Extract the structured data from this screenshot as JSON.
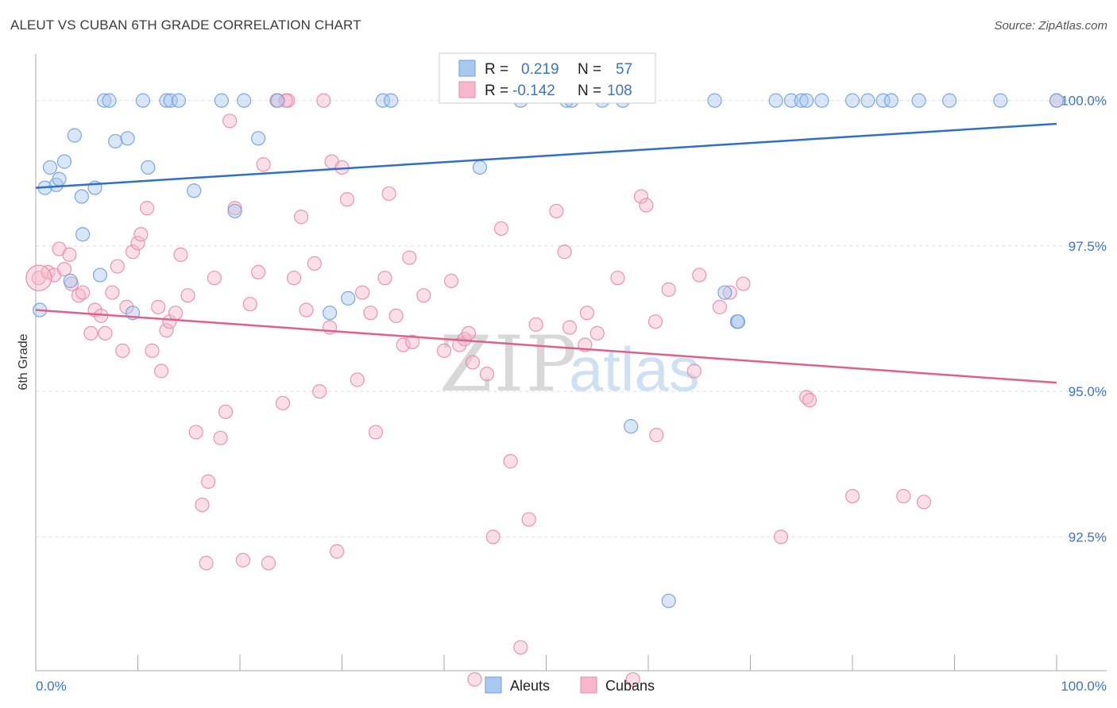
{
  "chart_data": {
    "type": "scatter",
    "title": "ALEUT VS CUBAN 6TH GRADE CORRELATION CHART",
    "source": "Source: ZipAtlas.com",
    "xlabel": "",
    "ylabel": "6th Grade",
    "xlim": [
      0,
      100
    ],
    "ylim": [
      90.2,
      100.8
    ],
    "x_tick_labels": {
      "min": "0.0%",
      "max": "100.0%"
    },
    "y_ticks": [
      {
        "value": 100.0,
        "label": "100.0%"
      },
      {
        "value": 97.5,
        "label": "97.5%"
      },
      {
        "value": 95.0,
        "label": "95.0%"
      },
      {
        "value": 92.5,
        "label": "92.5%"
      }
    ],
    "watermark": {
      "zip": "ZIP",
      "atlas": "atlas"
    },
    "legend": {
      "r_label": "R =",
      "n_label": "N =",
      "rows": [
        {
          "series": "Aleuts",
          "r": "0.219",
          "n": "57"
        },
        {
          "series": "Cubans",
          "r": "-0.142",
          "n": "108"
        }
      ]
    },
    "colors": {
      "aleuts_fill": "#a9c8f0",
      "aleuts_stroke": "#6f9fdc",
      "aleuts_line": "#2f6fcc",
      "cubans_fill": "#f7b8cb",
      "cubans_stroke": "#e889a6",
      "cubans_line": "#e0608a"
    },
    "series": [
      {
        "name": "Aleuts",
        "trend": {
          "x": [
            0,
            100
          ],
          "y": [
            98.5,
            99.6
          ]
        },
        "points": [
          [
            0.4,
            96.4
          ],
          [
            0.9,
            98.5
          ],
          [
            1.4,
            98.85
          ],
          [
            2.0,
            98.55
          ],
          [
            2.3,
            98.65
          ],
          [
            2.8,
            98.95
          ],
          [
            3.4,
            96.9
          ],
          [
            3.8,
            99.4
          ],
          [
            4.5,
            98.35
          ],
          [
            4.6,
            97.7
          ],
          [
            5.8,
            98.5
          ],
          [
            6.3,
            97.0
          ],
          [
            6.7,
            100.0
          ],
          [
            7.2,
            100.0
          ],
          [
            7.8,
            99.3
          ],
          [
            9.0,
            99.35
          ],
          [
            9.5,
            96.35
          ],
          [
            10.5,
            100.0
          ],
          [
            11.0,
            98.85
          ],
          [
            12.8,
            100.0
          ],
          [
            13.2,
            100.0
          ],
          [
            14.0,
            100.0
          ],
          [
            15.5,
            98.45
          ],
          [
            18.2,
            100.0
          ],
          [
            19.5,
            98.1
          ],
          [
            20.4,
            100.0
          ],
          [
            21.8,
            99.35
          ],
          [
            23.7,
            100.0
          ],
          [
            28.8,
            96.35
          ],
          [
            30.6,
            96.6
          ],
          [
            34.0,
            100.0
          ],
          [
            34.8,
            100.0
          ],
          [
            43.5,
            98.85
          ],
          [
            47.5,
            100.0
          ],
          [
            52.0,
            100.0
          ],
          [
            52.5,
            100.0
          ],
          [
            55.5,
            100.0
          ],
          [
            57.5,
            100.0
          ],
          [
            58.3,
            94.4
          ],
          [
            62.0,
            91.4
          ],
          [
            66.5,
            100.0
          ],
          [
            67.5,
            96.7
          ],
          [
            68.7,
            96.2
          ],
          [
            68.8,
            96.2
          ],
          [
            72.5,
            100.0
          ],
          [
            74.0,
            100.0
          ],
          [
            75.0,
            100.0
          ],
          [
            75.5,
            100.0
          ],
          [
            77.0,
            100.0
          ],
          [
            80.0,
            100.0
          ],
          [
            81.5,
            100.0
          ],
          [
            83.0,
            100.0
          ],
          [
            83.8,
            100.0
          ],
          [
            86.5,
            100.0
          ],
          [
            89.5,
            100.0
          ],
          [
            94.5,
            100.0
          ],
          [
            100.0,
            100.0
          ]
        ]
      },
      {
        "name": "Cubans",
        "trend": {
          "x": [
            0,
            100
          ],
          "y": [
            96.4,
            95.15
          ]
        },
        "points": [
          [
            0.3,
            96.95
          ],
          [
            1.2,
            97.05
          ],
          [
            1.8,
            97.0
          ],
          [
            2.3,
            97.45
          ],
          [
            2.8,
            97.1
          ],
          [
            3.3,
            97.35
          ],
          [
            3.5,
            96.85
          ],
          [
            4.2,
            96.65
          ],
          [
            4.6,
            96.7
          ],
          [
            5.4,
            96.0
          ],
          [
            5.8,
            96.4
          ],
          [
            6.4,
            96.3
          ],
          [
            6.8,
            96.0
          ],
          [
            7.5,
            96.7
          ],
          [
            8.0,
            97.15
          ],
          [
            8.5,
            95.7
          ],
          [
            8.9,
            96.45
          ],
          [
            9.5,
            97.4
          ],
          [
            10.0,
            97.55
          ],
          [
            10.3,
            97.7
          ],
          [
            10.9,
            98.15
          ],
          [
            11.4,
            95.7
          ],
          [
            12.0,
            96.45
          ],
          [
            12.3,
            95.35
          ],
          [
            12.8,
            96.05
          ],
          [
            13.1,
            96.2
          ],
          [
            13.7,
            96.35
          ],
          [
            14.2,
            97.35
          ],
          [
            14.9,
            96.65
          ],
          [
            15.7,
            94.3
          ],
          [
            16.3,
            93.05
          ],
          [
            16.7,
            92.05
          ],
          [
            16.9,
            93.45
          ],
          [
            17.5,
            96.95
          ],
          [
            18.1,
            94.2
          ],
          [
            18.6,
            94.65
          ],
          [
            19.0,
            99.65
          ],
          [
            19.5,
            98.15
          ],
          [
            20.3,
            92.1
          ],
          [
            21.0,
            96.5
          ],
          [
            21.8,
            97.05
          ],
          [
            22.3,
            98.9
          ],
          [
            22.8,
            92.05
          ],
          [
            23.6,
            100.0
          ],
          [
            24.2,
            94.8
          ],
          [
            24.7,
            100.0
          ],
          [
            25.3,
            96.95
          ],
          [
            26.0,
            98.0
          ],
          [
            26.5,
            96.4
          ],
          [
            27.3,
            97.2
          ],
          [
            27.8,
            95.0
          ],
          [
            28.8,
            96.1
          ],
          [
            28.2,
            100.0
          ],
          [
            29.0,
            98.95
          ],
          [
            29.5,
            92.25
          ],
          [
            30.0,
            98.85
          ],
          [
            30.5,
            98.3
          ],
          [
            31.5,
            95.2
          ],
          [
            32.0,
            96.7
          ],
          [
            32.8,
            96.35
          ],
          [
            33.3,
            94.3
          ],
          [
            34.2,
            96.95
          ],
          [
            34.6,
            98.4
          ],
          [
            35.3,
            96.3
          ],
          [
            36.0,
            95.8
          ],
          [
            36.6,
            97.3
          ],
          [
            36.9,
            95.85
          ],
          [
            38.0,
            96.65
          ],
          [
            40.0,
            95.7
          ],
          [
            40.7,
            96.9
          ],
          [
            41.5,
            95.8
          ],
          [
            42.0,
            95.9
          ],
          [
            42.4,
            96.0
          ],
          [
            42.8,
            95.5
          ],
          [
            43.0,
            90.05
          ],
          [
            44.2,
            95.3
          ],
          [
            44.8,
            92.5
          ],
          [
            45.6,
            97.8
          ],
          [
            46.5,
            93.8
          ],
          [
            47.5,
            90.6
          ],
          [
            48.3,
            92.8
          ],
          [
            49.0,
            96.15
          ],
          [
            51.0,
            98.1
          ],
          [
            51.8,
            97.4
          ],
          [
            52.3,
            96.1
          ],
          [
            53.8,
            95.8
          ],
          [
            54.0,
            96.35
          ],
          [
            55.0,
            96.0
          ],
          [
            57.0,
            96.95
          ],
          [
            58.5,
            90.05
          ],
          [
            59.3,
            98.35
          ],
          [
            59.8,
            98.2
          ],
          [
            60.7,
            96.2
          ],
          [
            62.0,
            96.75
          ],
          [
            64.5,
            95.35
          ],
          [
            65.0,
            97.0
          ],
          [
            67.0,
            96.45
          ],
          [
            68.0,
            96.7
          ],
          [
            69.3,
            96.85
          ],
          [
            73.0,
            92.5
          ],
          [
            75.5,
            94.9
          ],
          [
            75.8,
            94.85
          ],
          [
            80.0,
            93.2
          ],
          [
            85.0,
            93.2
          ],
          [
            87.0,
            93.1
          ],
          [
            100.0,
            100.0
          ],
          [
            60.8,
            94.25
          ],
          [
            24.5,
            100.0
          ]
        ]
      }
    ]
  }
}
